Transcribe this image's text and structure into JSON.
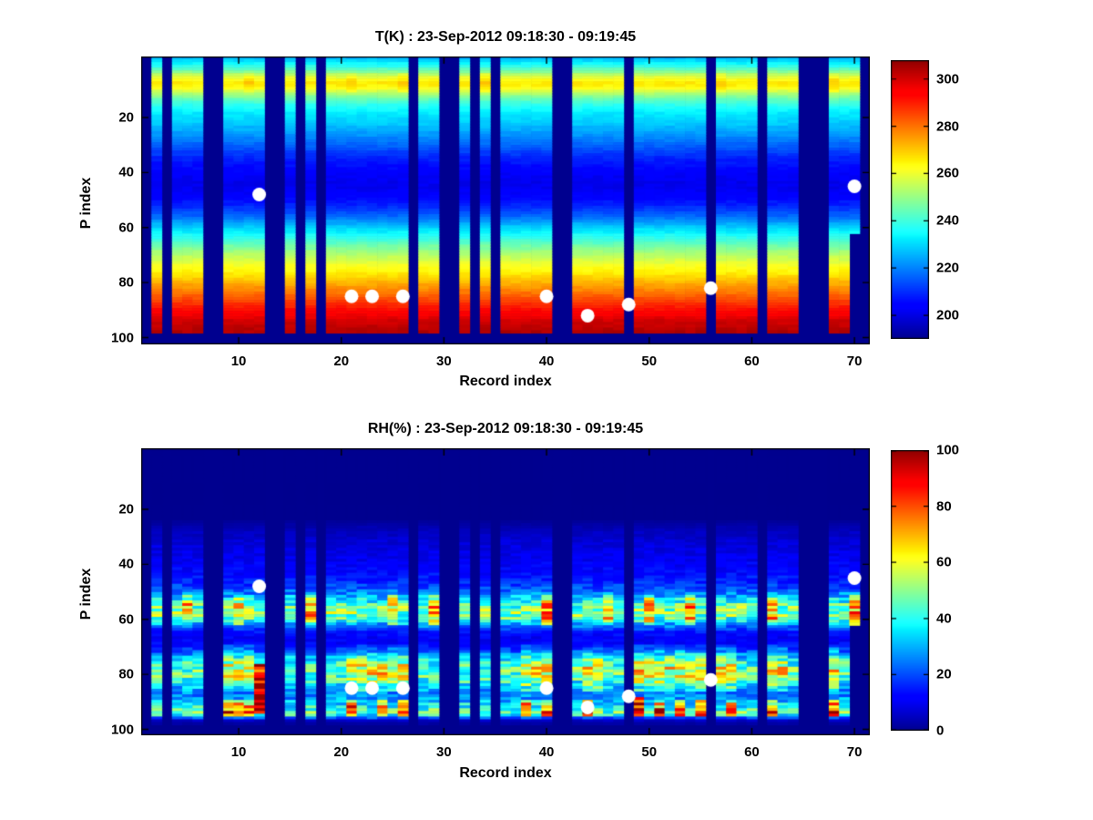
{
  "figure": {
    "background": "#ffffff",
    "colormap": "jet",
    "nan_color": "#00008f",
    "marker_color": "#ffffff"
  },
  "chart_data": [
    {
      "type": "heatmap",
      "title": "T(K) : 23-Sep-2012 09:18:30 - 09:19:45",
      "xlabel": "Record index",
      "ylabel": "P index",
      "x_ticks": [
        10,
        20,
        30,
        40,
        50,
        60,
        70
      ],
      "y_ticks": [
        20,
        40,
        60,
        80,
        100
      ],
      "x_range": [
        1,
        70
      ],
      "y_range": [
        1,
        100
      ],
      "y_axis_reversed": true,
      "n_records": 70,
      "clim": [
        190,
        308
      ],
      "colorbar_ticks": [
        300,
        280,
        260,
        240,
        220,
        200
      ],
      "missing_records": [
        1,
        3,
        7,
        8,
        13,
        14,
        16,
        18,
        27,
        30,
        31,
        33,
        35,
        41,
        42,
        48,
        56,
        61,
        65,
        66,
        67
      ],
      "partial_records": [
        {
          "record": 70,
          "valid_p_max": 64
        }
      ],
      "profile_p": [
        226,
        230,
        234,
        238,
        243,
        248,
        254,
        259,
        263,
        266,
        265,
        262,
        257,
        252,
        248,
        244,
        241,
        238,
        236,
        234,
        232,
        231,
        230,
        229,
        228,
        226,
        225,
        223,
        222,
        220,
        219,
        217,
        216,
        214,
        212,
        211,
        209,
        208,
        207,
        206,
        205,
        204,
        203,
        202,
        202,
        201,
        201,
        201,
        202,
        203,
        204,
        205,
        207,
        208,
        210,
        212,
        214,
        216,
        219,
        222,
        225,
        228,
        231,
        233,
        236,
        238,
        241,
        243,
        246,
        248,
        251,
        253,
        255,
        257,
        259,
        261,
        263,
        264,
        266,
        268,
        270,
        272,
        274,
        276,
        278,
        280,
        282,
        284,
        286,
        288,
        290,
        292,
        294,
        296,
        298,
        300,
        301,
        302,
        303,
        304
      ],
      "warm_band_records": [
        11,
        21,
        26,
        34,
        57,
        68
      ],
      "warm_band_p_range": [
        7,
        13
      ],
      "warm_band_delta_K": 4,
      "noise_amplitude_K": 1.6,
      "markers": {
        "shape": "circle",
        "color": "#ffffff",
        "points": [
          [
            12,
            48
          ],
          [
            21,
            85
          ],
          [
            23,
            85
          ],
          [
            26,
            85
          ],
          [
            40,
            85
          ],
          [
            44,
            92
          ],
          [
            48,
            88
          ],
          [
            56,
            82
          ],
          [
            70,
            45
          ]
        ]
      }
    },
    {
      "type": "heatmap",
      "title": "RH(%) : 23-Sep-2012 09:18:30 - 09:19:45",
      "xlabel": "Record index",
      "ylabel": "P index",
      "x_ticks": [
        10,
        20,
        30,
        40,
        50,
        60,
        70
      ],
      "y_ticks": [
        20,
        40,
        60,
        80,
        100
      ],
      "x_range": [
        1,
        70
      ],
      "y_range": [
        1,
        100
      ],
      "y_axis_reversed": true,
      "n_records": 70,
      "clim": [
        0,
        100
      ],
      "colorbar_ticks": [
        100,
        80,
        60,
        40,
        20,
        0
      ],
      "missing_records": [
        1,
        3,
        7,
        8,
        13,
        14,
        16,
        18,
        27,
        30,
        31,
        33,
        35,
        41,
        42,
        48,
        56,
        61,
        65,
        66,
        67
      ],
      "partial_records": [
        {
          "record": 70,
          "valid_p_max": 64
        }
      ],
      "profile_p": [
        0,
        0,
        0,
        0,
        0,
        0,
        0,
        0,
        0,
        0,
        0,
        0,
        0,
        0,
        0,
        0,
        0,
        0,
        0,
        0,
        0,
        0,
        0,
        0,
        0,
        0,
        1,
        2,
        3,
        4,
        5,
        5,
        6,
        7,
        7,
        8,
        8,
        9,
        9,
        10,
        10,
        11,
        11,
        12,
        12,
        13,
        14,
        15,
        16,
        18,
        20,
        23,
        26,
        30,
        35,
        40,
        44,
        47,
        49,
        50,
        48,
        44,
        38,
        31,
        24,
        18,
        14,
        12,
        11,
        11,
        12,
        14,
        17,
        21,
        26,
        31,
        36,
        40,
        43,
        45,
        46,
        45,
        44,
        42,
        39,
        35,
        31,
        28,
        26,
        26,
        28,
        31,
        35,
        39,
        43,
        45,
        38,
        20,
        5,
        2
      ],
      "band1_hot_records": [
        5,
        10,
        17,
        25,
        29,
        40,
        46,
        50,
        54,
        62,
        70
      ],
      "band1_p_range": [
        54,
        64
      ],
      "band1_factor": 1.5,
      "band2_strong_records": [
        9,
        10,
        11,
        21,
        22,
        23,
        24,
        25,
        26,
        38,
        39,
        40,
        44,
        45,
        49,
        50,
        51,
        52,
        53,
        54,
        55,
        57,
        58,
        62,
        63,
        68
      ],
      "band2_p_range": [
        72,
        88
      ],
      "band2_factor": 1.35,
      "bottom_red_records": [
        9,
        10,
        11,
        21,
        24,
        26,
        38,
        40,
        44,
        49,
        51,
        53,
        55,
        58,
        62,
        68
      ],
      "bottom_p_range": [
        92,
        97
      ],
      "bottom_factor": 1.9,
      "overrides": [
        {
          "record": 12,
          "p_range": [
            79,
            96
          ],
          "value": 100
        },
        {
          "record": 49,
          "p_range": [
            91,
            96
          ],
          "value": 95
        }
      ],
      "noise_relative": 0.3,
      "markers": {
        "shape": "circle",
        "color": "#ffffff",
        "points": [
          [
            12,
            48
          ],
          [
            21,
            85
          ],
          [
            23,
            85
          ],
          [
            26,
            85
          ],
          [
            40,
            85
          ],
          [
            44,
            92
          ],
          [
            48,
            88
          ],
          [
            56,
            82
          ],
          [
            70,
            45
          ]
        ]
      }
    }
  ]
}
